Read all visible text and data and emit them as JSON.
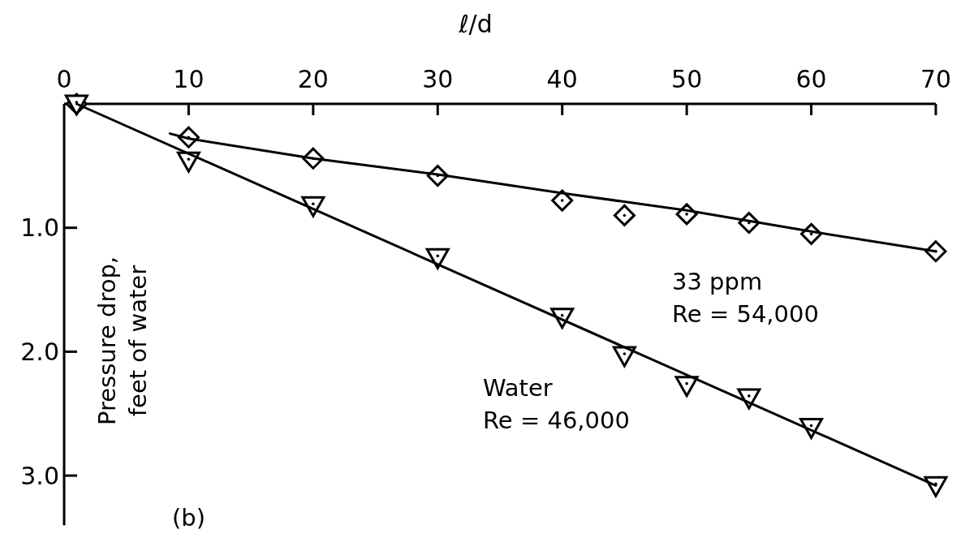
{
  "chart_data": {
    "type": "scatter",
    "xlabel": "ℓ/d",
    "ylabel": "Pressure drop,\nfeet of water",
    "xlim": [
      0,
      70
    ],
    "ylim": [
      3.4,
      0
    ],
    "xticks": [
      0,
      10,
      20,
      30,
      40,
      50,
      60,
      70
    ],
    "yticks": [
      {
        "value": 1,
        "label": "1.0"
      },
      {
        "value": 2,
        "label": "2.0"
      },
      {
        "value": 3,
        "label": "3.0"
      }
    ],
    "grid": false,
    "series": [
      {
        "marker": "diamond",
        "color": "#000000",
        "x": [
          1,
          10,
          20,
          30,
          40,
          45,
          50,
          55,
          60,
          70
        ],
        "values": [
          0,
          0.27,
          0.44,
          0.58,
          0.78,
          0.9,
          0.89,
          0.96,
          1.05,
          1.19
        ]
      },
      {
        "marker": "triangle",
        "color": "#000000",
        "x": [
          1,
          10,
          20,
          30,
          40,
          45,
          50,
          55,
          60,
          70
        ],
        "values": [
          0,
          0.46,
          0.82,
          1.24,
          1.72,
          2.03,
          2.27,
          2.37,
          2.61,
          3.08
        ]
      },
      {
        "type": "line",
        "marker": "none",
        "line_style": "solid",
        "color": "#000000",
        "x": [
          1,
          70
        ],
        "values": [
          0,
          3.08
        ]
      },
      {
        "type": "line",
        "marker": "none",
        "line_style": "solid",
        "color": "#000000",
        "x": [
          8.5,
          10,
          20,
          30,
          40,
          50,
          60,
          70
        ],
        "values": [
          0.24,
          0.28,
          0.44,
          0.57,
          0.72,
          0.86,
          1.03,
          1.19
        ]
      }
    ],
    "annotations": [
      "33 ppm\nRe = 54,000",
      "Water\nRe = 46,000",
      "(b)"
    ]
  }
}
